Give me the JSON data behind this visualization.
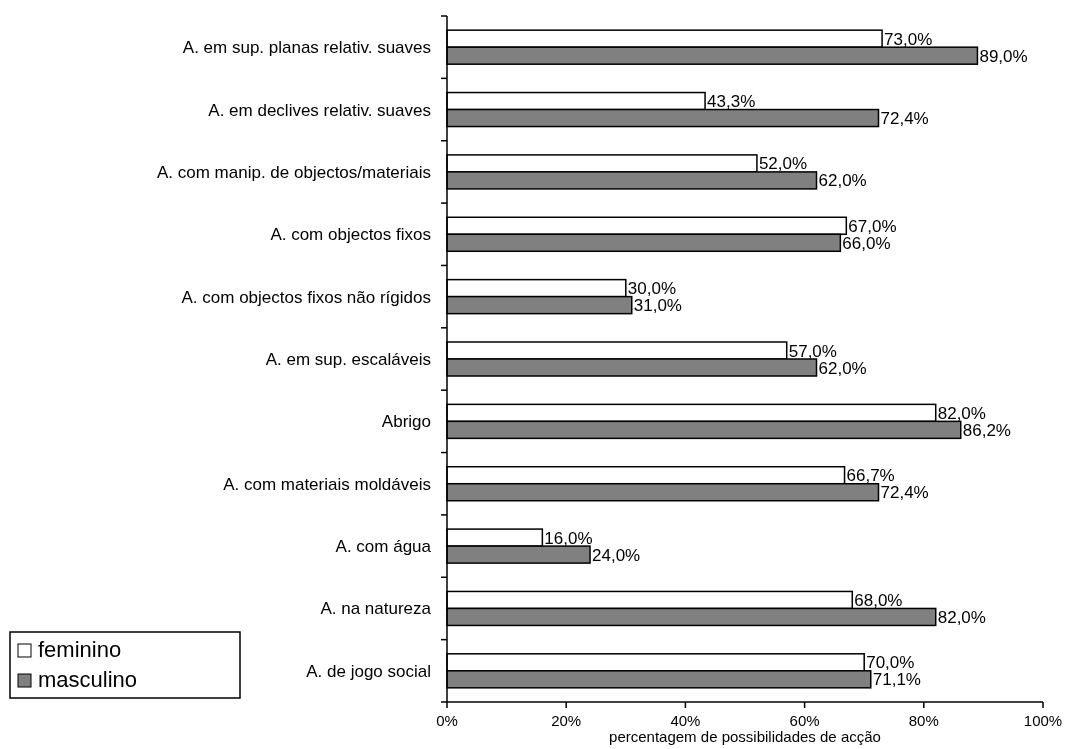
{
  "chart_data": {
    "type": "bar",
    "orientation": "horizontal",
    "xlabel": "percentagem de possibilidades de acção",
    "categories": [
      "A. em sup. planas relativ. suaves",
      "A. em declives relativ. suaves",
      "A. com manip. de objectos/materiais",
      "A. com objectos fixos",
      "A. com objectos fixos não rígidos",
      "A. em sup. escaláveis",
      "Abrigo",
      "A. com materiais moldáveis",
      "A. com água",
      "A. na natureza",
      "A. de jogo social"
    ],
    "series": [
      {
        "name": "feminino",
        "color": "#ffffff",
        "values": [
          73.0,
          43.3,
          52.0,
          67.0,
          30.0,
          57.0,
          82.0,
          66.7,
          16.0,
          68.0,
          70.0
        ],
        "value_labels": [
          "73,0%",
          "43,3%",
          "52,0%",
          "67,0%",
          "30,0%",
          "57,0%",
          "82,0%",
          "66,7%",
          "16,0%",
          "68,0%",
          "70,0%"
        ]
      },
      {
        "name": "masculino",
        "color": "#808080",
        "values": [
          89.0,
          72.4,
          62.0,
          66.0,
          31.0,
          62.0,
          86.2,
          72.4,
          24.0,
          82.0,
          71.1
        ],
        "value_labels": [
          "89,0%",
          "72,4%",
          "62,0%",
          "66,0%",
          "31,0%",
          "62,0%",
          "86,2%",
          "72,4%",
          "24,0%",
          "82,0%",
          "71,1%"
        ]
      }
    ],
    "xlim": [
      0,
      100
    ],
    "xticks": [
      {
        "value": 0,
        "label": "0%"
      },
      {
        "value": 20,
        "label": "20%"
      },
      {
        "value": 40,
        "label": "40%"
      },
      {
        "value": 60,
        "label": "60%"
      },
      {
        "value": 80,
        "label": "80%"
      },
      {
        "value": 100,
        "label": "100%"
      }
    ],
    "grid": false,
    "legend": "bottom left"
  }
}
